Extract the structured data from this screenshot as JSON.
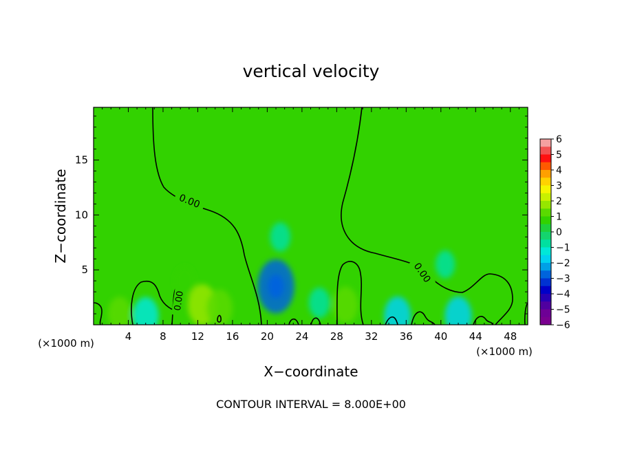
{
  "chart_data": {
    "type": "heatmap",
    "title": "vertical velocity",
    "xlabel": "X−coordinate",
    "ylabel": "Z−coordinate",
    "x_unit_left": "(×1000 m)",
    "x_unit_right": "(×1000 m)",
    "footer": "CONTOUR INTERVAL = 8.000E+00",
    "xlim": [
      0,
      50
    ],
    "ylim": [
      0,
      19.8
    ],
    "x_ticks": [
      4,
      8,
      12,
      16,
      20,
      24,
      28,
      32,
      36,
      40,
      44,
      48
    ],
    "y_ticks": [
      5,
      10,
      15
    ],
    "contour_level": 0,
    "contour_labels": [
      {
        "text": "0.00",
        "x": 11,
        "z": 11
      },
      {
        "text": "0.00",
        "x": 9.8,
        "z": 2.2
      },
      {
        "text": "0.00",
        "x": 38.5,
        "z": 5
      }
    ],
    "colorbar": {
      "ticks": [
        "6",
        "5",
        "4",
        "3",
        "2",
        "1",
        "0",
        "−1",
        "−2",
        "−3",
        "−4",
        "−5",
        "−6"
      ],
      "colors": [
        "#f4a0a0",
        "#f25050",
        "#ff1010",
        "#ff5a00",
        "#ffa000",
        "#ffd200",
        "#f5f500",
        "#c8f000",
        "#96e600",
        "#5ada00",
        "#32d200",
        "#1ed03c",
        "#14d46e",
        "#00e0a0",
        "#00e8d8",
        "#00d2f0",
        "#00a0e6",
        "#0064dc",
        "#0032d2",
        "#0000c8",
        "#2800b4",
        "#5000a0",
        "#6e0096",
        "#7a0090"
      ]
    },
    "features": [
      {
        "x": 21,
        "z": 3.5,
        "value": -2.8
      },
      {
        "x": 21.5,
        "z": 8,
        "value": -0.8
      },
      {
        "x": 12.5,
        "z": 1.8,
        "value": 1.8
      },
      {
        "x": 14.5,
        "z": 1.5,
        "value": 1.5
      },
      {
        "x": 10.5,
        "z": 4,
        "value": 0.8
      },
      {
        "x": 6,
        "z": 0.8,
        "value": -1.5
      },
      {
        "x": 29,
        "z": 1.8,
        "value": 1.4
      },
      {
        "x": 26,
        "z": 2,
        "value": -0.9
      },
      {
        "x": 35,
        "z": 0.8,
        "value": -1.6
      },
      {
        "x": 42,
        "z": 0.8,
        "value": -1.6
      },
      {
        "x": 40.5,
        "z": 5.5,
        "value": -0.7
      },
      {
        "x": 3,
        "z": 1,
        "value": 1.2
      }
    ]
  }
}
